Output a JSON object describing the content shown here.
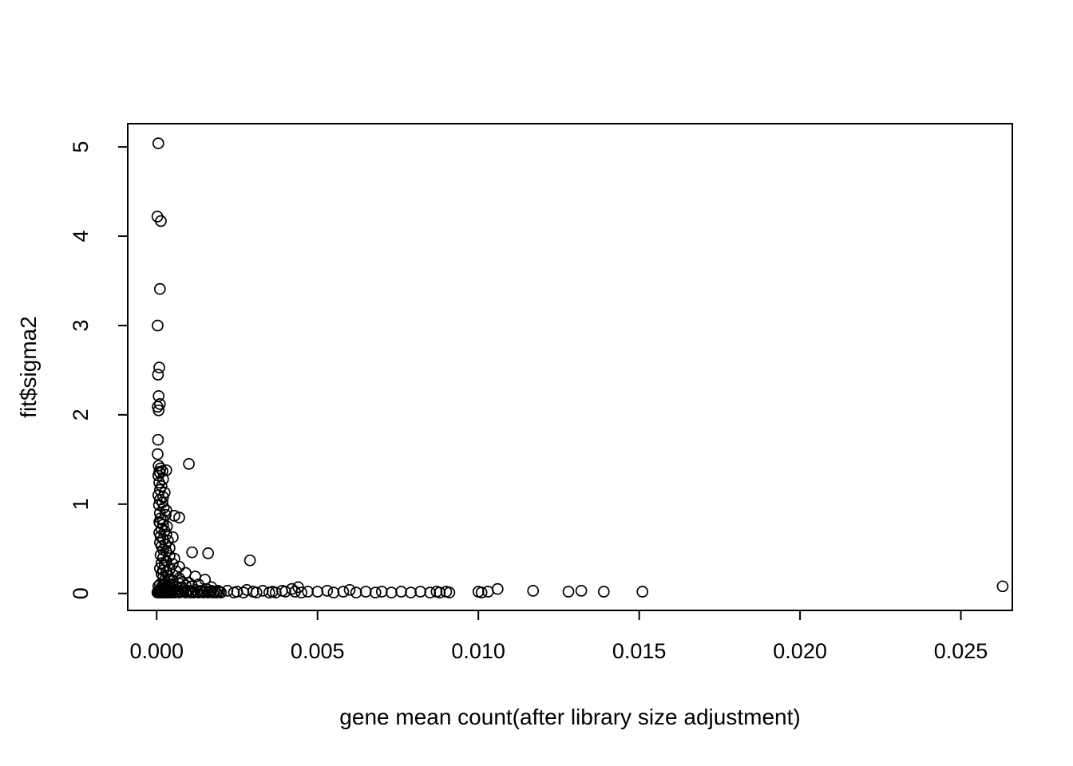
{
  "chart_data": {
    "type": "scatter",
    "title": "",
    "xlabel": "gene mean count(after library size adjustment)",
    "ylabel": "fit$sigma2",
    "marker": "open-circle",
    "point_color": "#000000",
    "background": "#ffffff",
    "grid": false,
    "legend": "none",
    "xlim": [
      -0.0009,
      0.0266
    ],
    "ylim": [
      -0.19,
      5.26
    ],
    "x_ticks": {
      "values": [
        0,
        0.005,
        0.01,
        0.015,
        0.02,
        0.025
      ],
      "labels": [
        "0.000",
        "0.005",
        "0.010",
        "0.015",
        "0.020",
        "0.025"
      ]
    },
    "y_ticks": {
      "values": [
        0,
        1,
        2,
        3,
        4,
        5
      ],
      "labels": [
        "0",
        "1",
        "2",
        "3",
        "4",
        "5"
      ]
    },
    "points": [
      [
        5e-05,
        5.04
      ],
      [
        2e-05,
        4.22
      ],
      [
        0.00013,
        4.17
      ],
      [
        0.0001,
        3.41
      ],
      [
        3e-05,
        3.0
      ],
      [
        8e-05,
        2.53
      ],
      [
        4e-05,
        2.45
      ],
      [
        6e-05,
        2.21
      ],
      [
        0.0001,
        2.12
      ],
      [
        3e-05,
        2.09
      ],
      [
        6e-05,
        2.05
      ],
      [
        4e-05,
        1.72
      ],
      [
        3e-05,
        1.56
      ],
      [
        0.001,
        1.45
      ],
      [
        6e-05,
        1.43
      ],
      [
        0.00012,
        1.4
      ],
      [
        0.0003,
        1.38
      ],
      [
        0.00018,
        1.37
      ],
      [
        8e-05,
        1.36
      ],
      [
        0.0001,
        1.35
      ],
      [
        5e-05,
        1.32
      ],
      [
        0.0002,
        1.28
      ],
      [
        8e-05,
        1.24
      ],
      [
        0.00015,
        1.2
      ],
      [
        0.0001,
        1.16
      ],
      [
        0.00025,
        1.13
      ],
      [
        5e-05,
        1.1
      ],
      [
        0.0002,
        1.08
      ],
      [
        0.0001,
        1.05
      ],
      [
        0.00018,
        1.02
      ],
      [
        7e-05,
        0.99
      ],
      [
        0.00022,
        0.96
      ],
      [
        0.0003,
        0.93
      ],
      [
        0.0001,
        0.9
      ],
      [
        0.00028,
        0.88
      ],
      [
        0.00055,
        0.87
      ],
      [
        0.0007,
        0.85
      ],
      [
        0.00012,
        0.84
      ],
      [
        0.0002,
        0.82
      ],
      [
        8e-05,
        0.8
      ],
      [
        0.0001,
        0.79
      ],
      [
        0.0002,
        0.77
      ],
      [
        0.00032,
        0.75
      ],
      [
        0.00015,
        0.72
      ],
      [
        0.00025,
        0.7
      ],
      [
        8e-05,
        0.68
      ],
      [
        0.0003,
        0.66
      ],
      [
        0.00012,
        0.64
      ],
      [
        0.0005,
        0.63
      ],
      [
        0.0002,
        0.61
      ],
      [
        0.00035,
        0.59
      ],
      [
        0.0001,
        0.57
      ],
      [
        0.00028,
        0.55
      ],
      [
        0.00015,
        0.53
      ],
      [
        0.0004,
        0.51
      ],
      [
        0.0002,
        0.49
      ],
      [
        0.0003,
        0.47
      ],
      [
        0.0011,
        0.46
      ],
      [
        0.0016,
        0.45
      ],
      [
        0.00012,
        0.43
      ],
      [
        0.0004,
        0.42
      ],
      [
        0.0002,
        0.4
      ],
      [
        0.00055,
        0.39
      ],
      [
        0.0029,
        0.37
      ],
      [
        0.0003,
        0.36
      ],
      [
        0.00015,
        0.34
      ],
      [
        0.0005,
        0.33
      ],
      [
        0.00025,
        0.31
      ],
      [
        0.0007,
        0.3
      ],
      [
        0.0001,
        0.28
      ],
      [
        0.0004,
        0.27
      ],
      [
        0.0002,
        0.26
      ],
      [
        0.0006,
        0.25
      ],
      [
        0.0003,
        0.24
      ],
      [
        0.0009,
        0.23
      ],
      [
        0.00015,
        0.22
      ],
      [
        0.0005,
        0.21
      ],
      [
        0.00035,
        0.2
      ],
      [
        0.0012,
        0.19
      ],
      [
        0.0002,
        0.18
      ],
      [
        0.0007,
        0.17
      ],
      [
        0.0004,
        0.16
      ],
      [
        0.0015,
        0.155
      ],
      [
        0.00025,
        0.15
      ],
      [
        5e-05,
        0.08
      ],
      [
        0.0001,
        0.1
      ],
      [
        0.00015,
        0.07
      ],
      [
        0.0002,
        0.09
      ],
      [
        0.00025,
        0.11
      ],
      [
        0.0003,
        0.08
      ],
      [
        0.00035,
        0.06
      ],
      [
        0.0004,
        0.1
      ],
      [
        0.00045,
        0.07
      ],
      [
        0.0005,
        0.09
      ],
      [
        0.0006,
        0.08
      ],
      [
        0.0007,
        0.11
      ],
      [
        0.0008,
        0.07
      ],
      [
        0.0009,
        0.09
      ],
      [
        0.001,
        0.12
      ],
      [
        0.0005,
        0.14
      ],
      [
        0.0008,
        0.13
      ],
      [
        0.0011,
        0.08
      ],
      [
        0.0013,
        0.1
      ],
      [
        0.0017,
        0.07
      ],
      [
        2e-05,
        0.01
      ],
      [
        4e-05,
        0.02
      ],
      [
        6e-05,
        0.01
      ],
      [
        8e-05,
        0.03
      ],
      [
        0.0001,
        0.01
      ],
      [
        0.00012,
        0.02
      ],
      [
        0.00014,
        0.04
      ],
      [
        0.00016,
        0.01
      ],
      [
        0.00018,
        0.02
      ],
      [
        0.0002,
        0.05
      ],
      [
        0.00022,
        0.01
      ],
      [
        0.00024,
        0.03
      ],
      [
        0.00026,
        0.02
      ],
      [
        0.00028,
        0.01
      ],
      [
        0.0003,
        0.04
      ],
      [
        0.00032,
        0.02
      ],
      [
        0.00034,
        0.01
      ],
      [
        0.00036,
        0.03
      ],
      [
        0.00038,
        0.02
      ],
      [
        0.0004,
        0.01
      ],
      [
        0.00042,
        0.06
      ],
      [
        0.00044,
        0.02
      ],
      [
        0.00046,
        0.01
      ],
      [
        0.00048,
        0.03
      ],
      [
        0.0005,
        0.02
      ],
      [
        0.00055,
        0.01
      ],
      [
        0.0006,
        0.04
      ],
      [
        0.00065,
        0.02
      ],
      [
        0.0007,
        0.01
      ],
      [
        0.00075,
        0.03
      ],
      [
        0.0008,
        0.02
      ],
      [
        0.00085,
        0.05
      ],
      [
        0.0009,
        0.01
      ],
      [
        0.00095,
        0.02
      ],
      [
        0.001,
        0.03
      ],
      [
        0.00105,
        0.01
      ],
      [
        0.0011,
        0.02
      ],
      [
        0.00115,
        0.01
      ],
      [
        0.0012,
        0.04
      ],
      [
        0.00125,
        0.02
      ],
      [
        0.0013,
        0.01
      ],
      [
        0.00135,
        0.03
      ],
      [
        0.0014,
        0.02
      ],
      [
        0.00145,
        0.01
      ],
      [
        0.0015,
        0.02
      ],
      [
        0.00155,
        0.05
      ],
      [
        0.0016,
        0.01
      ],
      [
        0.00165,
        0.02
      ],
      [
        0.0017,
        0.03
      ],
      [
        0.00175,
        0.01
      ],
      [
        0.0018,
        0.02
      ],
      [
        0.00185,
        0.01
      ],
      [
        0.0019,
        0.03
      ],
      [
        0.00195,
        0.02
      ],
      [
        0.002,
        0.01
      ],
      [
        0.0022,
        0.03
      ],
      [
        0.0024,
        0.01
      ],
      [
        0.0025,
        0.02
      ],
      [
        0.0027,
        0.01
      ],
      [
        0.0028,
        0.04
      ],
      [
        0.003,
        0.02
      ],
      [
        0.0031,
        0.01
      ],
      [
        0.0033,
        0.03
      ],
      [
        0.0035,
        0.01
      ],
      [
        0.0036,
        0.02
      ],
      [
        0.0037,
        0.01
      ],
      [
        0.0039,
        0.03
      ],
      [
        0.004,
        0.02
      ],
      [
        0.0042,
        0.05
      ],
      [
        0.0043,
        0.02
      ],
      [
        0.0044,
        0.07
      ],
      [
        0.0045,
        0.01
      ],
      [
        0.0047,
        0.02
      ],
      [
        0.005,
        0.02
      ],
      [
        0.0053,
        0.03
      ],
      [
        0.0055,
        0.01
      ],
      [
        0.0058,
        0.02
      ],
      [
        0.006,
        0.04
      ],
      [
        0.0062,
        0.01
      ],
      [
        0.0065,
        0.02
      ],
      [
        0.0068,
        0.01
      ],
      [
        0.007,
        0.02
      ],
      [
        0.0073,
        0.01
      ],
      [
        0.0076,
        0.02
      ],
      [
        0.0079,
        0.01
      ],
      [
        0.0082,
        0.02
      ],
      [
        0.0085,
        0.01
      ],
      [
        0.0087,
        0.02
      ],
      [
        0.0088,
        0.01
      ],
      [
        0.009,
        0.02
      ],
      [
        0.0091,
        0.01
      ],
      [
        0.01,
        0.02
      ],
      [
        0.0101,
        0.01
      ],
      [
        0.0103,
        0.02
      ],
      [
        0.0106,
        0.05
      ],
      [
        0.0117,
        0.03
      ],
      [
        0.0128,
        0.02
      ],
      [
        0.0132,
        0.03
      ],
      [
        0.0139,
        0.02
      ],
      [
        0.0151,
        0.02
      ],
      [
        0.0263,
        0.08
      ]
    ]
  }
}
